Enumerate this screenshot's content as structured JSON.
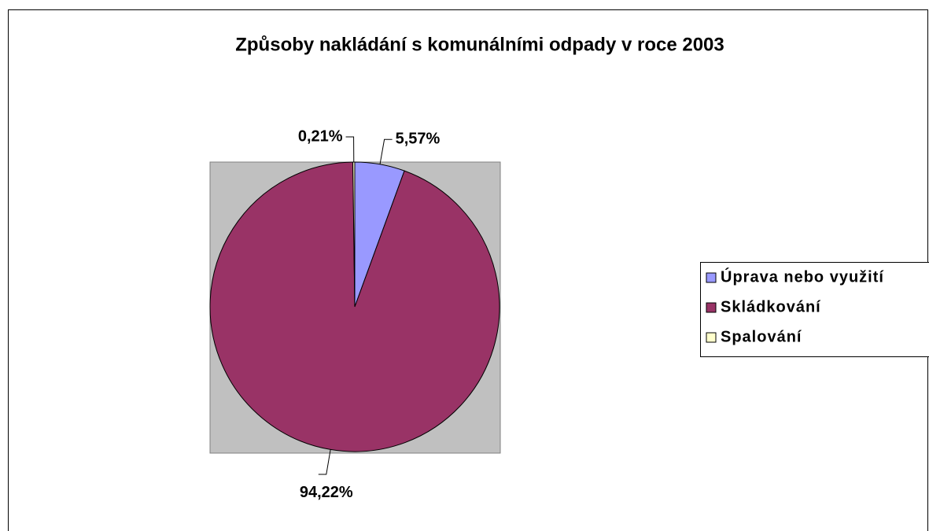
{
  "chart_data": {
    "type": "pie",
    "title": "Způsoby nakládání s komunálními odpady v roce 2003",
    "categories": [
      "Úprava nebo využití",
      "Skládkování",
      "Spalování"
    ],
    "values": [
      5.57,
      94.22,
      0.21
    ],
    "value_labels": [
      "5,57%",
      "94,22%",
      "0,21%"
    ],
    "colors": [
      "#9999ff",
      "#993366",
      "#ffffcc"
    ],
    "legend": "right"
  }
}
